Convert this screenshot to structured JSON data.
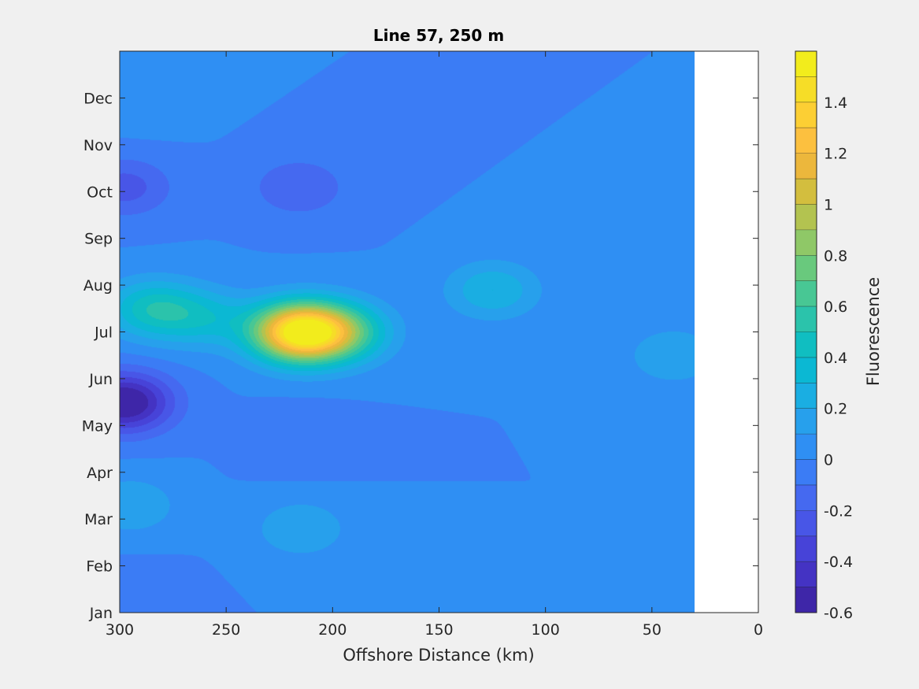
{
  "chart_data": {
    "type": "heatmap",
    "subtype": "filled-contour",
    "title": "Line 57, 250 m",
    "xlabel": "Offshore Distance (km)",
    "ylabel": "",
    "xlim": [
      300,
      0
    ],
    "x_reversed": true,
    "x_ticks": [
      300,
      250,
      200,
      150,
      100,
      50,
      0
    ],
    "x_tick_labels": [
      "300",
      "250",
      "200",
      "150",
      "100",
      "50",
      "0"
    ],
    "y_ticks": [
      1,
      2,
      3,
      4,
      5,
      6,
      7,
      8,
      9,
      10,
      11,
      12
    ],
    "y_tick_labels": [
      "Jan",
      "Feb",
      "Mar",
      "Apr",
      "May",
      "Jun",
      "Jul",
      "Aug",
      "Sep",
      "Oct",
      "Nov",
      "Dec"
    ],
    "ylim": [
      1,
      13
    ],
    "data_x_range": [
      30,
      300
    ],
    "colorbar": {
      "label": "Fluorescence",
      "limits": [
        -0.6,
        1.6
      ],
      "ticks": [
        -0.6,
        -0.4,
        -0.2,
        0,
        0.2,
        0.4,
        0.6,
        0.8,
        1,
        1.2,
        1.4
      ],
      "tick_labels": [
        "-0.6",
        "-0.4",
        "-0.2",
        "0",
        "0.2",
        "0.4",
        "0.6",
        "0.8",
        "1",
        "1.2",
        "1.4"
      ],
      "levels": [
        -0.6,
        -0.5,
        -0.4,
        -0.3,
        -0.2,
        -0.1,
        0,
        0.1,
        0.2,
        0.3,
        0.4,
        0.5,
        0.6,
        0.7,
        0.8,
        0.9,
        1.0,
        1.1,
        1.2,
        1.3,
        1.4,
        1.5,
        1.6
      ],
      "colors": [
        "#3e26a8",
        "#4433c3",
        "#4743d8",
        "#4856e7",
        "#4569f0",
        "#3b7cf5",
        "#2f8ff3",
        "#27a0ec",
        "#1aaee2",
        "#0bb8d3",
        "#10bec1",
        "#2bc3ab",
        "#48c794",
        "#69c97d",
        "#8fc867",
        "#b3c350",
        "#d3be3e",
        "#ecb73c",
        "#fcc03f",
        "#fccf34",
        "#f6dd27",
        "#f2ec1c"
      ]
    },
    "background_value": 0,
    "features": [
      {
        "x": 216,
        "y": 7.0,
        "value": 1.52
      },
      {
        "x": 196,
        "y": 7.0,
        "value": 0.6
      },
      {
        "x": 285,
        "y": 7.5,
        "value": 0.45
      },
      {
        "x": 260,
        "y": 7.3,
        "value": 0.3
      },
      {
        "x": 125,
        "y": 7.9,
        "value": 0.3
      },
      {
        "x": 40,
        "y": 6.5,
        "value": 0.2
      },
      {
        "x": 298,
        "y": 5.5,
        "value": -0.65
      },
      {
        "x": 298,
        "y": 10.1,
        "value": -0.25
      },
      {
        "x": 216,
        "y": 10.1,
        "value": -0.2
      },
      {
        "x": 255,
        "y": 10.1,
        "value": 0.0
      },
      {
        "x": 215,
        "y": 4.7,
        "value": -0.1
      },
      {
        "x": 295,
        "y": 1.5,
        "value": -0.05
      },
      {
        "x": 215,
        "y": 2.8,
        "value": 0.2
      },
      {
        "x": 295,
        "y": 3.3,
        "value": 0.2
      },
      {
        "x": 290,
        "y": 12.0,
        "value": 0.1
      },
      {
        "x": 125,
        "y": 11.0,
        "value": 0.0
      },
      {
        "x": 58,
        "y": 9.8,
        "value": 0.0
      },
      {
        "x": 35,
        "y": 11.6,
        "value": 0.0
      }
    ]
  }
}
